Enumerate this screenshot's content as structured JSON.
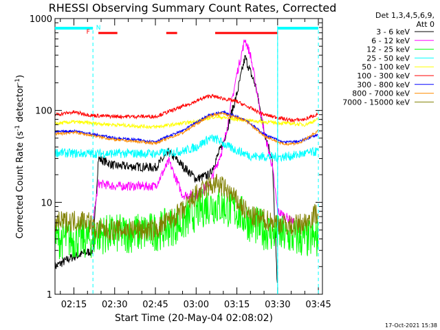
{
  "chart_data": {
    "type": "line",
    "title": "RHESSI Observing Summary Count Rates, Corrected",
    "xlabel": "Start Time (20-May-04 02:08:02)",
    "ylabel": "Corrected Count Rate (s⁻¹ detector⁻¹)",
    "ylabel_main": "Corrected Count Rate (s",
    "ylabel_sup1": "-1",
    "ylabel_mid": " detector",
    "ylabel_sup2": "-1",
    "ylabel_end": ")",
    "yscale": "log",
    "ylim": [
      1,
      1000
    ],
    "xlim": [
      "02:08:02",
      "03:46:30"
    ],
    "xticks": [
      "02:15",
      "02:30",
      "02:45",
      "03:00",
      "03:15",
      "03:30",
      "03:45"
    ],
    "yticks": [
      "1",
      "10",
      "100",
      "1000"
    ],
    "legend_header": [
      "Det 1,3,4,5,6,9,",
      "Att 0"
    ],
    "legend_placement": "right",
    "footer_date": "17-Oct-2021 15:38",
    "flag_labels": [
      "F",
      "N"
    ],
    "series": [
      {
        "name": "3 - 6 keV",
        "color": "#000000",
        "t": [
          "02:08",
          "02:14",
          "02:22",
          "02:24",
          "02:30",
          "02:45",
          "02:50",
          "03:00",
          "03:05",
          "03:10",
          "03:15",
          "03:18",
          "03:22",
          "03:25",
          "03:28",
          "03:30"
        ],
        "values": [
          2,
          2.5,
          3,
          30,
          25,
          24,
          35,
          18,
          20,
          45,
          150,
          380,
          180,
          60,
          30,
          1
        ]
      },
      {
        "name": "6 - 12 keV",
        "color": "#ff00ff",
        "t": [
          "02:22",
          "02:24",
          "02:30",
          "02:45",
          "02:50",
          "02:55",
          "03:00",
          "03:05",
          "03:10",
          "03:15",
          "03:18",
          "03:20",
          "03:25",
          "03:28",
          "03:30",
          "03:33",
          "03:36"
        ],
        "values": [
          6,
          16,
          15,
          15,
          28,
          12,
          12,
          16,
          40,
          250,
          600,
          400,
          60,
          25,
          8,
          7,
          6
        ]
      },
      {
        "name": "12 - 25 keV",
        "color": "#00ff00",
        "t": [
          "02:08",
          "02:22",
          "02:23",
          "02:30",
          "02:45",
          "02:55",
          "03:00",
          "03:05",
          "03:10",
          "03:15",
          "03:20",
          "03:25",
          "03:30",
          "03:35",
          "03:40",
          "03:45"
        ],
        "values": [
          4,
          4,
          4.5,
          4.5,
          4.8,
          6,
          8,
          9.5,
          9,
          8,
          6,
          5,
          4.5,
          4.2,
          4,
          4
        ]
      },
      {
        "name": "25 - 50 keV",
        "color": "#00ffff",
        "t": [
          "02:08",
          "02:15",
          "02:30",
          "02:45",
          "02:55",
          "03:00",
          "03:05",
          "03:08",
          "03:12",
          "03:20",
          "03:30",
          "03:35",
          "03:40",
          "03:45"
        ],
        "values": [
          35,
          34,
          34,
          34,
          36,
          40,
          50,
          48,
          40,
          32,
          31,
          32,
          34,
          36
        ]
      },
      {
        "name": "50 - 100 keV",
        "color": "#ffff00",
        "t": [
          "02:08",
          "02:15",
          "02:30",
          "02:45",
          "03:00",
          "03:07",
          "03:15",
          "03:25",
          "03:35",
          "03:40",
          "03:45"
        ],
        "values": [
          72,
          75,
          70,
          66,
          76,
          86,
          80,
          75,
          72,
          70,
          80
        ]
      },
      {
        "name": "100 - 300 keV",
        "color": "#ff0000",
        "t": [
          "02:08",
          "02:15",
          "02:22",
          "02:30",
          "02:45",
          "02:55",
          "03:05",
          "03:15",
          "03:25",
          "03:35",
          "03:40",
          "03:45"
        ],
        "values": [
          90,
          96,
          88,
          86,
          86,
          110,
          145,
          125,
          90,
          78,
          80,
          92
        ]
      },
      {
        "name": "300 - 800 keV",
        "color": "#0000ff",
        "t": [
          "02:08",
          "02:15",
          "02:30",
          "02:45",
          "02:55",
          "03:05",
          "03:10",
          "03:18",
          "03:25",
          "03:32",
          "03:38",
          "03:45"
        ],
        "values": [
          58,
          60,
          50,
          46,
          60,
          90,
          96,
          80,
          55,
          45,
          46,
          55
        ]
      },
      {
        "name": "800 - 7000 keV",
        "color": "#ff8c00",
        "t": [
          "02:08",
          "02:15",
          "02:30",
          "02:45",
          "02:55",
          "03:05",
          "03:10",
          "03:18",
          "03:25",
          "03:32",
          "03:38",
          "03:45"
        ],
        "values": [
          55,
          58,
          48,
          44,
          57,
          88,
          93,
          78,
          53,
          43,
          44,
          60
        ]
      },
      {
        "name": "7000 - 15000 keV",
        "color": "#808000",
        "t": [
          "02:08",
          "02:20",
          "02:23",
          "02:30",
          "02:45",
          "02:55",
          "03:00",
          "03:05",
          "03:08",
          "03:12",
          "03:20",
          "03:30",
          "03:35",
          "03:40",
          "03:45"
        ],
        "values": [
          6,
          6.5,
          5,
          5,
          5,
          8,
          12,
          15,
          16,
          13,
          7,
          6,
          5.5,
          6,
          8
        ]
      }
    ],
    "annotations": {
      "cyan_bars": [
        [
          "02:08",
          "02:22"
        ],
        [
          "03:30",
          "03:45"
        ]
      ],
      "red_bars": [
        [
          "02:24",
          "02:31"
        ],
        [
          "02:49",
          "02:53"
        ],
        [
          "03:07",
          "03:30"
        ]
      ],
      "dashed_markers": [
        "02:22",
        "03:30",
        "03:45"
      ]
    }
  }
}
